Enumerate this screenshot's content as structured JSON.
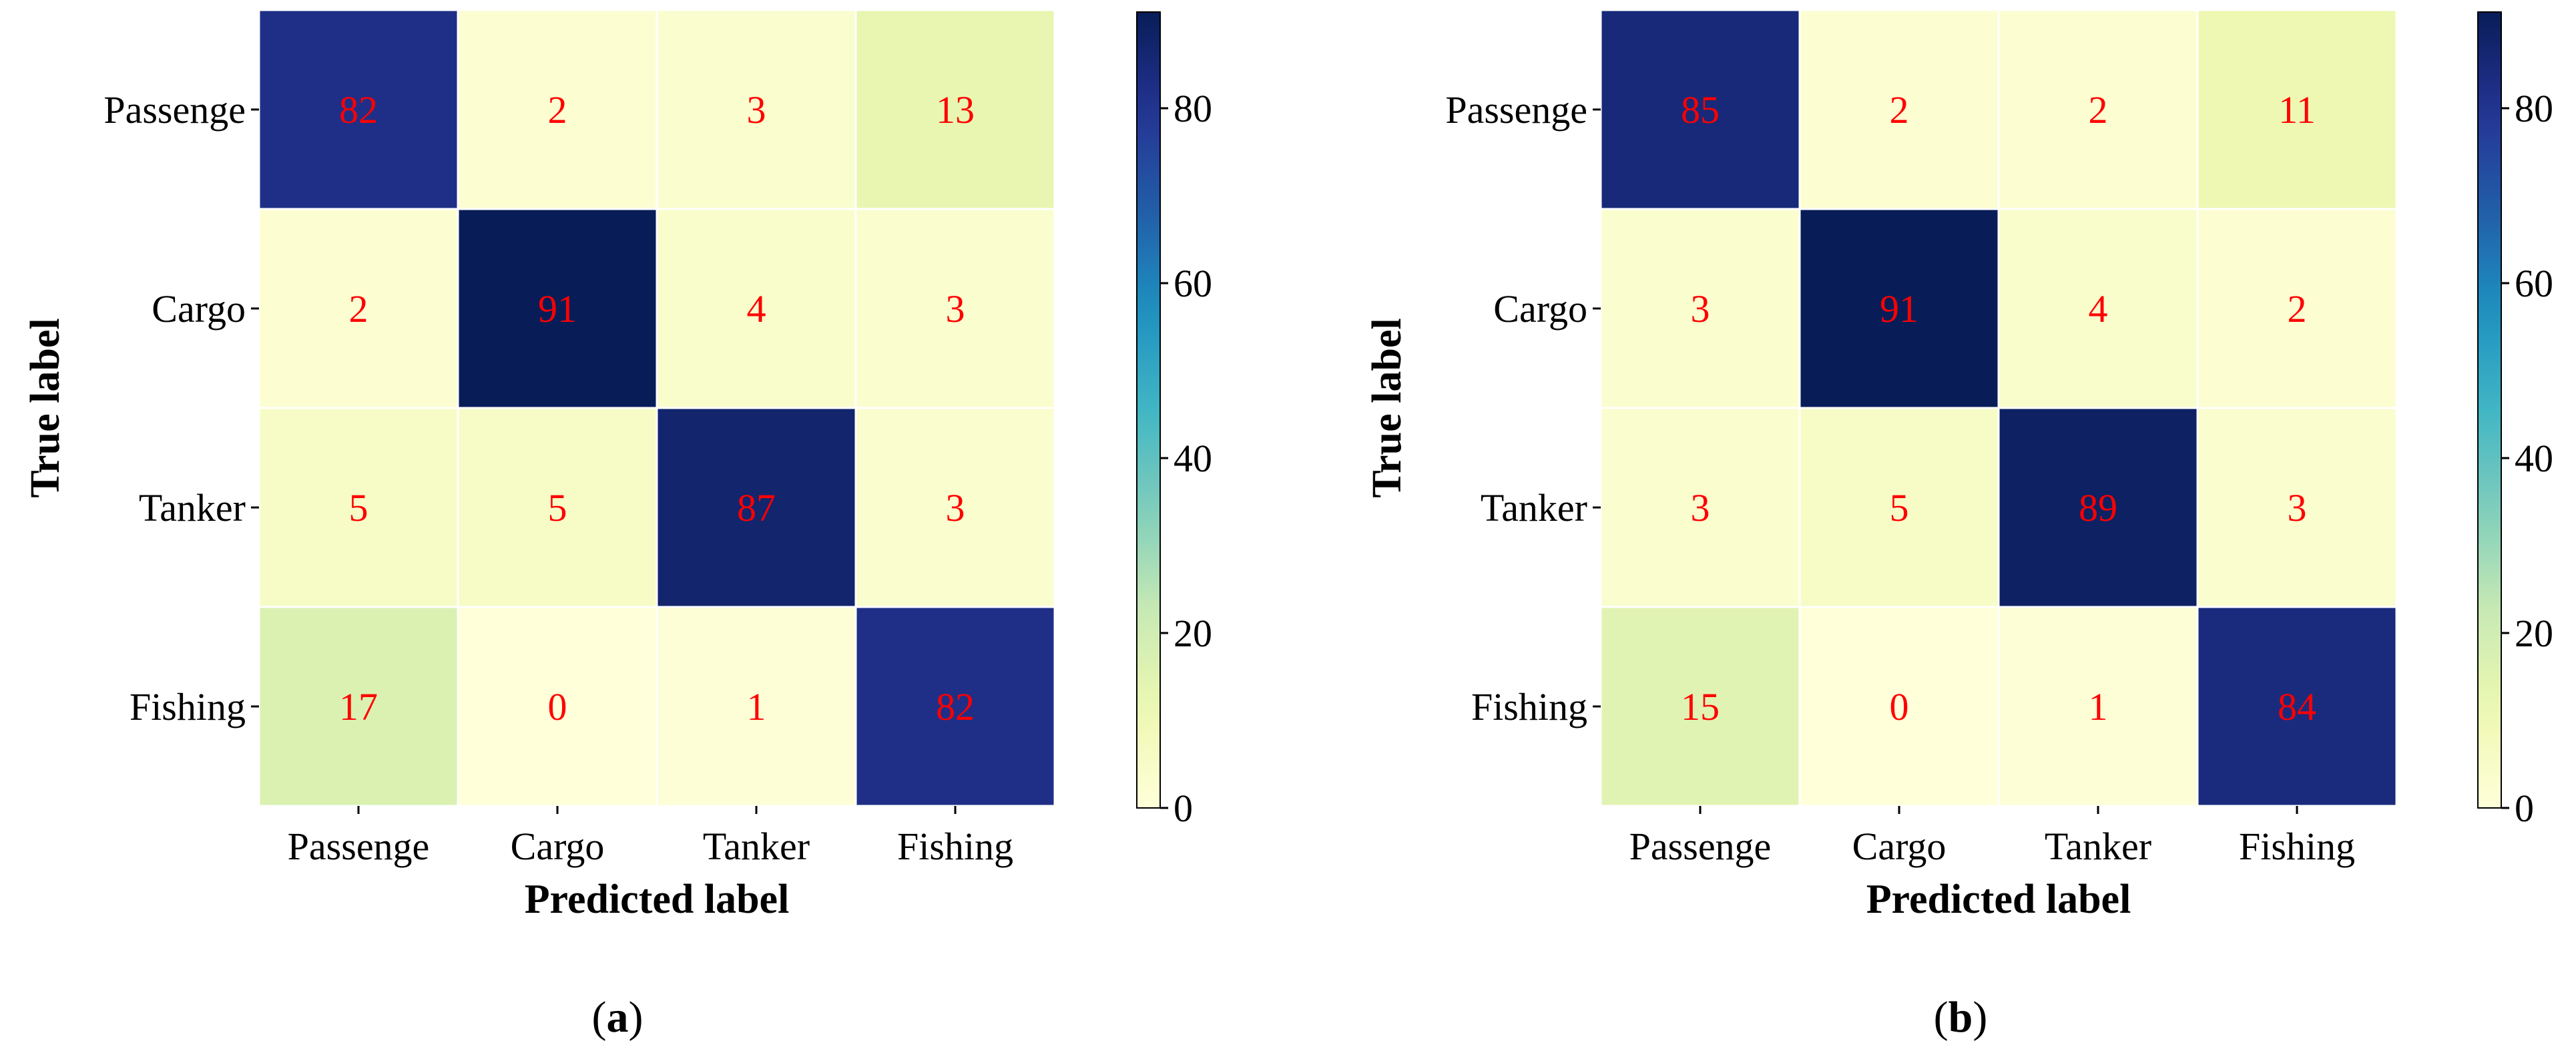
{
  "chart_data": [
    {
      "type": "heatmap",
      "panel_label": "a",
      "xlabel": "Predicted label",
      "ylabel": "True label",
      "x_categories": [
        "Passenge",
        "Cargo",
        "Tanker",
        "Fishing"
      ],
      "y_categories": [
        "Passenge",
        "Cargo",
        "Tanker",
        "Fishing"
      ],
      "values": [
        [
          82,
          2,
          3,
          13
        ],
        [
          2,
          91,
          4,
          3
        ],
        [
          5,
          5,
          87,
          3
        ],
        [
          17,
          0,
          1,
          82
        ]
      ],
      "value_range": [
        0,
        91
      ],
      "colormap": "YlGnBu",
      "annotation_color": "#ff0000",
      "colorbar_ticks": [
        "0",
        "20",
        "40",
        "60",
        "80"
      ]
    },
    {
      "type": "heatmap",
      "panel_label": "b",
      "xlabel": "Predicted label",
      "ylabel": "True label",
      "x_categories": [
        "Passenge",
        "Cargo",
        "Tanker",
        "Fishing"
      ],
      "y_categories": [
        "Passenge",
        "Cargo",
        "Tanker",
        "Fishing"
      ],
      "values": [
        [
          85,
          2,
          2,
          11
        ],
        [
          3,
          91,
          4,
          2
        ],
        [
          3,
          5,
          89,
          3
        ],
        [
          15,
          0,
          1,
          84
        ]
      ],
      "value_range": [
        0,
        91
      ],
      "colormap": "YlGnBu",
      "annotation_color": "#ff0000",
      "colorbar_ticks": [
        "0",
        "20",
        "40",
        "60",
        "80"
      ]
    }
  ]
}
